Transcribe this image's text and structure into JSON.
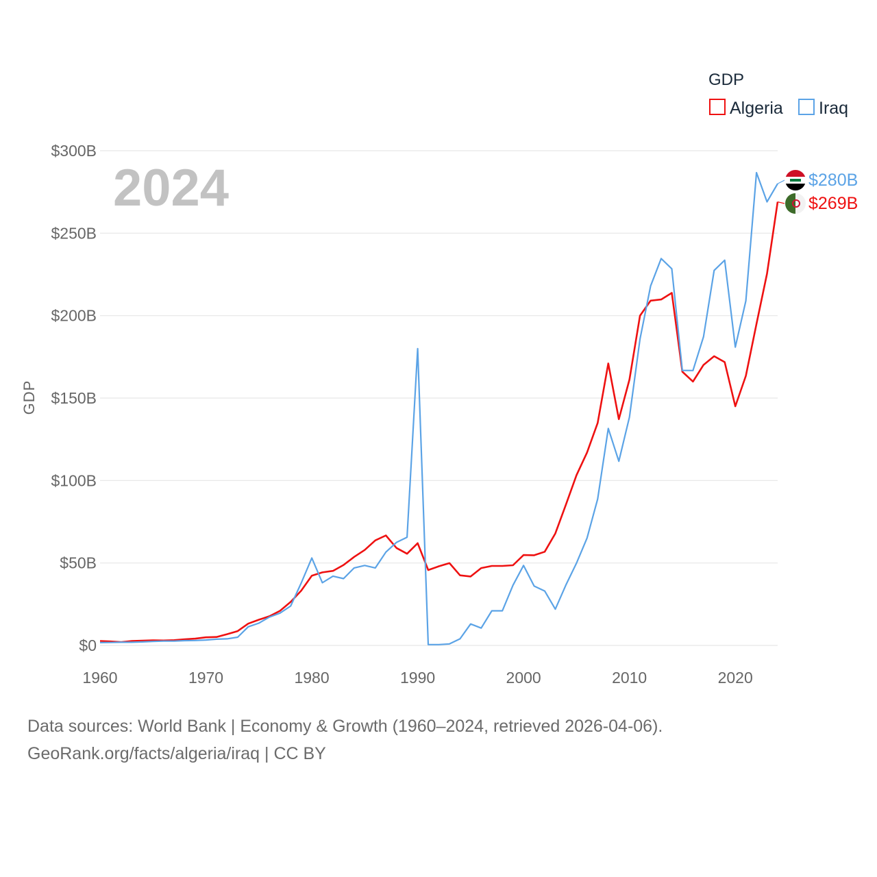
{
  "legend": {
    "title": "GDP"
  },
  "year_label": "2024",
  "footer": {
    "line1": "Data sources: World Bank | Economy & Growth (1960–2024, retrieved 2026-04-06).",
    "line2": "GeoRank.org/facts/algeria/iraq | CC BY"
  },
  "colors": {
    "algeria": "#ee1111",
    "iraq": "#5ba3e6",
    "grid": "#e6e6e6",
    "tick": "#666666"
  },
  "chart_data": {
    "type": "line",
    "title": "",
    "xlabel": "",
    "ylabel": "GDP",
    "xlim": [
      1960,
      2024
    ],
    "ylim": [
      0,
      300
    ],
    "x_ticks": [
      1960,
      1970,
      1980,
      1990,
      2000,
      2010,
      2020
    ],
    "y_ticks": [
      0,
      50,
      100,
      150,
      200,
      250,
      300
    ],
    "y_tick_labels": [
      "$0",
      "$50B",
      "$100B",
      "$150B",
      "$200B",
      "$250B",
      "$300B"
    ],
    "units": "billion US$",
    "x": [
      1960,
      1961,
      1962,
      1963,
      1964,
      1965,
      1966,
      1967,
      1968,
      1969,
      1970,
      1971,
      1972,
      1973,
      1974,
      1975,
      1976,
      1977,
      1978,
      1979,
      1980,
      1981,
      1982,
      1983,
      1984,
      1985,
      1986,
      1987,
      1988,
      1989,
      1990,
      1991,
      1992,
      1993,
      1994,
      1995,
      1996,
      1997,
      1998,
      1999,
      2000,
      2001,
      2002,
      2003,
      2004,
      2005,
      2006,
      2007,
      2008,
      2009,
      2010,
      2011,
      2012,
      2013,
      2014,
      2015,
      2016,
      2017,
      2018,
      2019,
      2020,
      2021,
      2022,
      2023,
      2024
    ],
    "series": [
      {
        "name": "Algeria",
        "color": "#ee1111",
        "end_label": "$269B",
        "values": [
          2.7,
          2.4,
          2.0,
          2.7,
          2.9,
          3.1,
          3.0,
          3.2,
          3.7,
          4.1,
          4.9,
          5.1,
          6.8,
          8.7,
          13.2,
          15.6,
          17.7,
          21.0,
          26.4,
          33.2,
          42.3,
          44.3,
          45.2,
          48.8,
          53.7,
          57.9,
          63.7,
          66.7,
          59.1,
          55.6,
          62.0,
          45.7,
          48.0,
          49.9,
          42.5,
          41.8,
          46.9,
          48.2,
          48.2,
          48.6,
          54.8,
          54.7,
          56.8,
          67.9,
          85.3,
          103.2,
          117.0,
          134.9,
          171.0,
          137.2,
          161.2,
          200.0,
          209.1,
          209.8,
          213.8,
          166.0,
          160.0,
          170.1,
          175.4,
          171.8,
          145.0,
          163.5,
          195.0,
          225.5,
          269.0
        ]
      },
      {
        "name": "Iraq",
        "color": "#5ba3e6",
        "end_label": "$280B",
        "values": [
          1.7,
          1.8,
          1.9,
          1.9,
          2.1,
          2.4,
          2.6,
          2.6,
          2.9,
          3.0,
          3.3,
          3.8,
          4.0,
          5.0,
          11.3,
          13.5,
          17.2,
          19.6,
          23.9,
          37.8,
          53.0,
          38.0,
          42.0,
          40.5,
          47.0,
          48.5,
          47.0,
          56.6,
          62.5,
          65.6,
          180.0,
          0.5,
          0.5,
          0.9,
          4.0,
          13.0,
          10.5,
          21.0,
          21.0,
          36.5,
          48.5,
          36.0,
          33.0,
          22.0,
          36.6,
          49.9,
          65.1,
          88.8,
          131.6,
          111.7,
          138.5,
          185.8,
          218.0,
          234.6,
          228.4,
          166.8,
          166.7,
          187.2,
          227.4,
          233.6,
          180.9,
          209.0,
          286.7,
          269.0,
          280.0
        ]
      }
    ]
  }
}
